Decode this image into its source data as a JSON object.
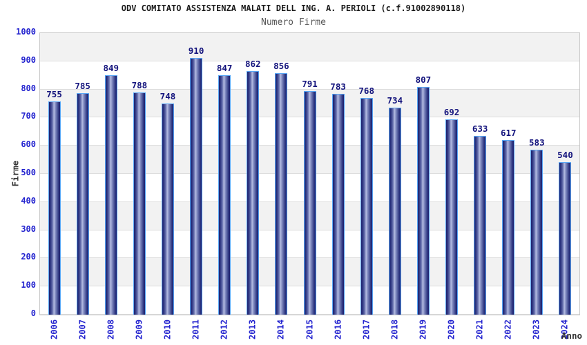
{
  "header": {
    "title": "ODV COMITATO ASSISTENZA MALATI DELL ING. A. PERIOLI (c.f.91002890118)",
    "subtitle": "Numero Firme"
  },
  "chart_data": {
    "type": "bar",
    "title": "ODV COMITATO ASSISTENZA MALATI DELL ING. A. PERIOLI (c.f.91002890118)",
    "subtitle": "Numero Firme",
    "xlabel": "Anno",
    "ylabel": "Firme",
    "categories": [
      "2006",
      "2007",
      "2008",
      "2009",
      "2010",
      "2011",
      "2012",
      "2013",
      "2014",
      "2015",
      "2016",
      "2017",
      "2018",
      "2019",
      "2020",
      "2021",
      "2022",
      "2023",
      "2024"
    ],
    "values": [
      755,
      785,
      849,
      788,
      748,
      910,
      847,
      862,
      856,
      791,
      783,
      768,
      734,
      807,
      692,
      633,
      617,
      583,
      540
    ],
    "ylim": [
      0,
      1000
    ],
    "ytick_step": 100,
    "grid": "horizontal-bands",
    "legend": "none",
    "band_colors": [
      "#f2f2f2",
      "#ffffff"
    ],
    "colors": {
      "title": "#1a1a1a",
      "subtitle": "#555555",
      "tick_label": "#2323cf",
      "value_label": "#14147d",
      "axis_title": "#333333",
      "bar_border": "#58a6f5",
      "bar_dark": "#1b2170",
      "bar_light": "#b4bce2",
      "grid_line": "#dddddd",
      "plot_border": "#c8c8c8"
    }
  }
}
